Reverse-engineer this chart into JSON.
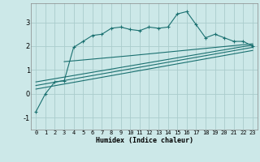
{
  "title": "",
  "xlabel": "Humidex (Indice chaleur)",
  "bg_color": "#cce8e8",
  "grid_color": "#aacccc",
  "line_color": "#1a7070",
  "xlim": [
    -0.5,
    23.5
  ],
  "ylim": [
    -1.5,
    3.8
  ],
  "yticks": [
    -1,
    0,
    1,
    2,
    3
  ],
  "xticks": [
    0,
    1,
    2,
    3,
    4,
    5,
    6,
    7,
    8,
    9,
    10,
    11,
    12,
    13,
    14,
    15,
    16,
    17,
    18,
    19,
    20,
    21,
    22,
    23
  ],
  "main_x": [
    0,
    1,
    2,
    3,
    4,
    5,
    6,
    7,
    8,
    9,
    10,
    11,
    12,
    13,
    14,
    15,
    16,
    17,
    18,
    19,
    20,
    21,
    22,
    23
  ],
  "main_y": [
    -0.75,
    0.0,
    0.5,
    0.55,
    1.95,
    2.2,
    2.45,
    2.5,
    2.75,
    2.8,
    2.7,
    2.65,
    2.8,
    2.75,
    2.8,
    3.35,
    3.45,
    2.9,
    2.35,
    2.5,
    2.35,
    2.2,
    2.2,
    2.0
  ],
  "line2_x": [
    3,
    10,
    23
  ],
  "line2_y": [
    1.35,
    1.6,
    2.1
  ],
  "line3_x": [
    0,
    23
  ],
  "line3_y": [
    0.5,
    2.05
  ],
  "line4_x": [
    0,
    23
  ],
  "line4_y": [
    0.35,
    1.95
  ],
  "line5_x": [
    0,
    23
  ],
  "line5_y": [
    0.2,
    1.82
  ]
}
